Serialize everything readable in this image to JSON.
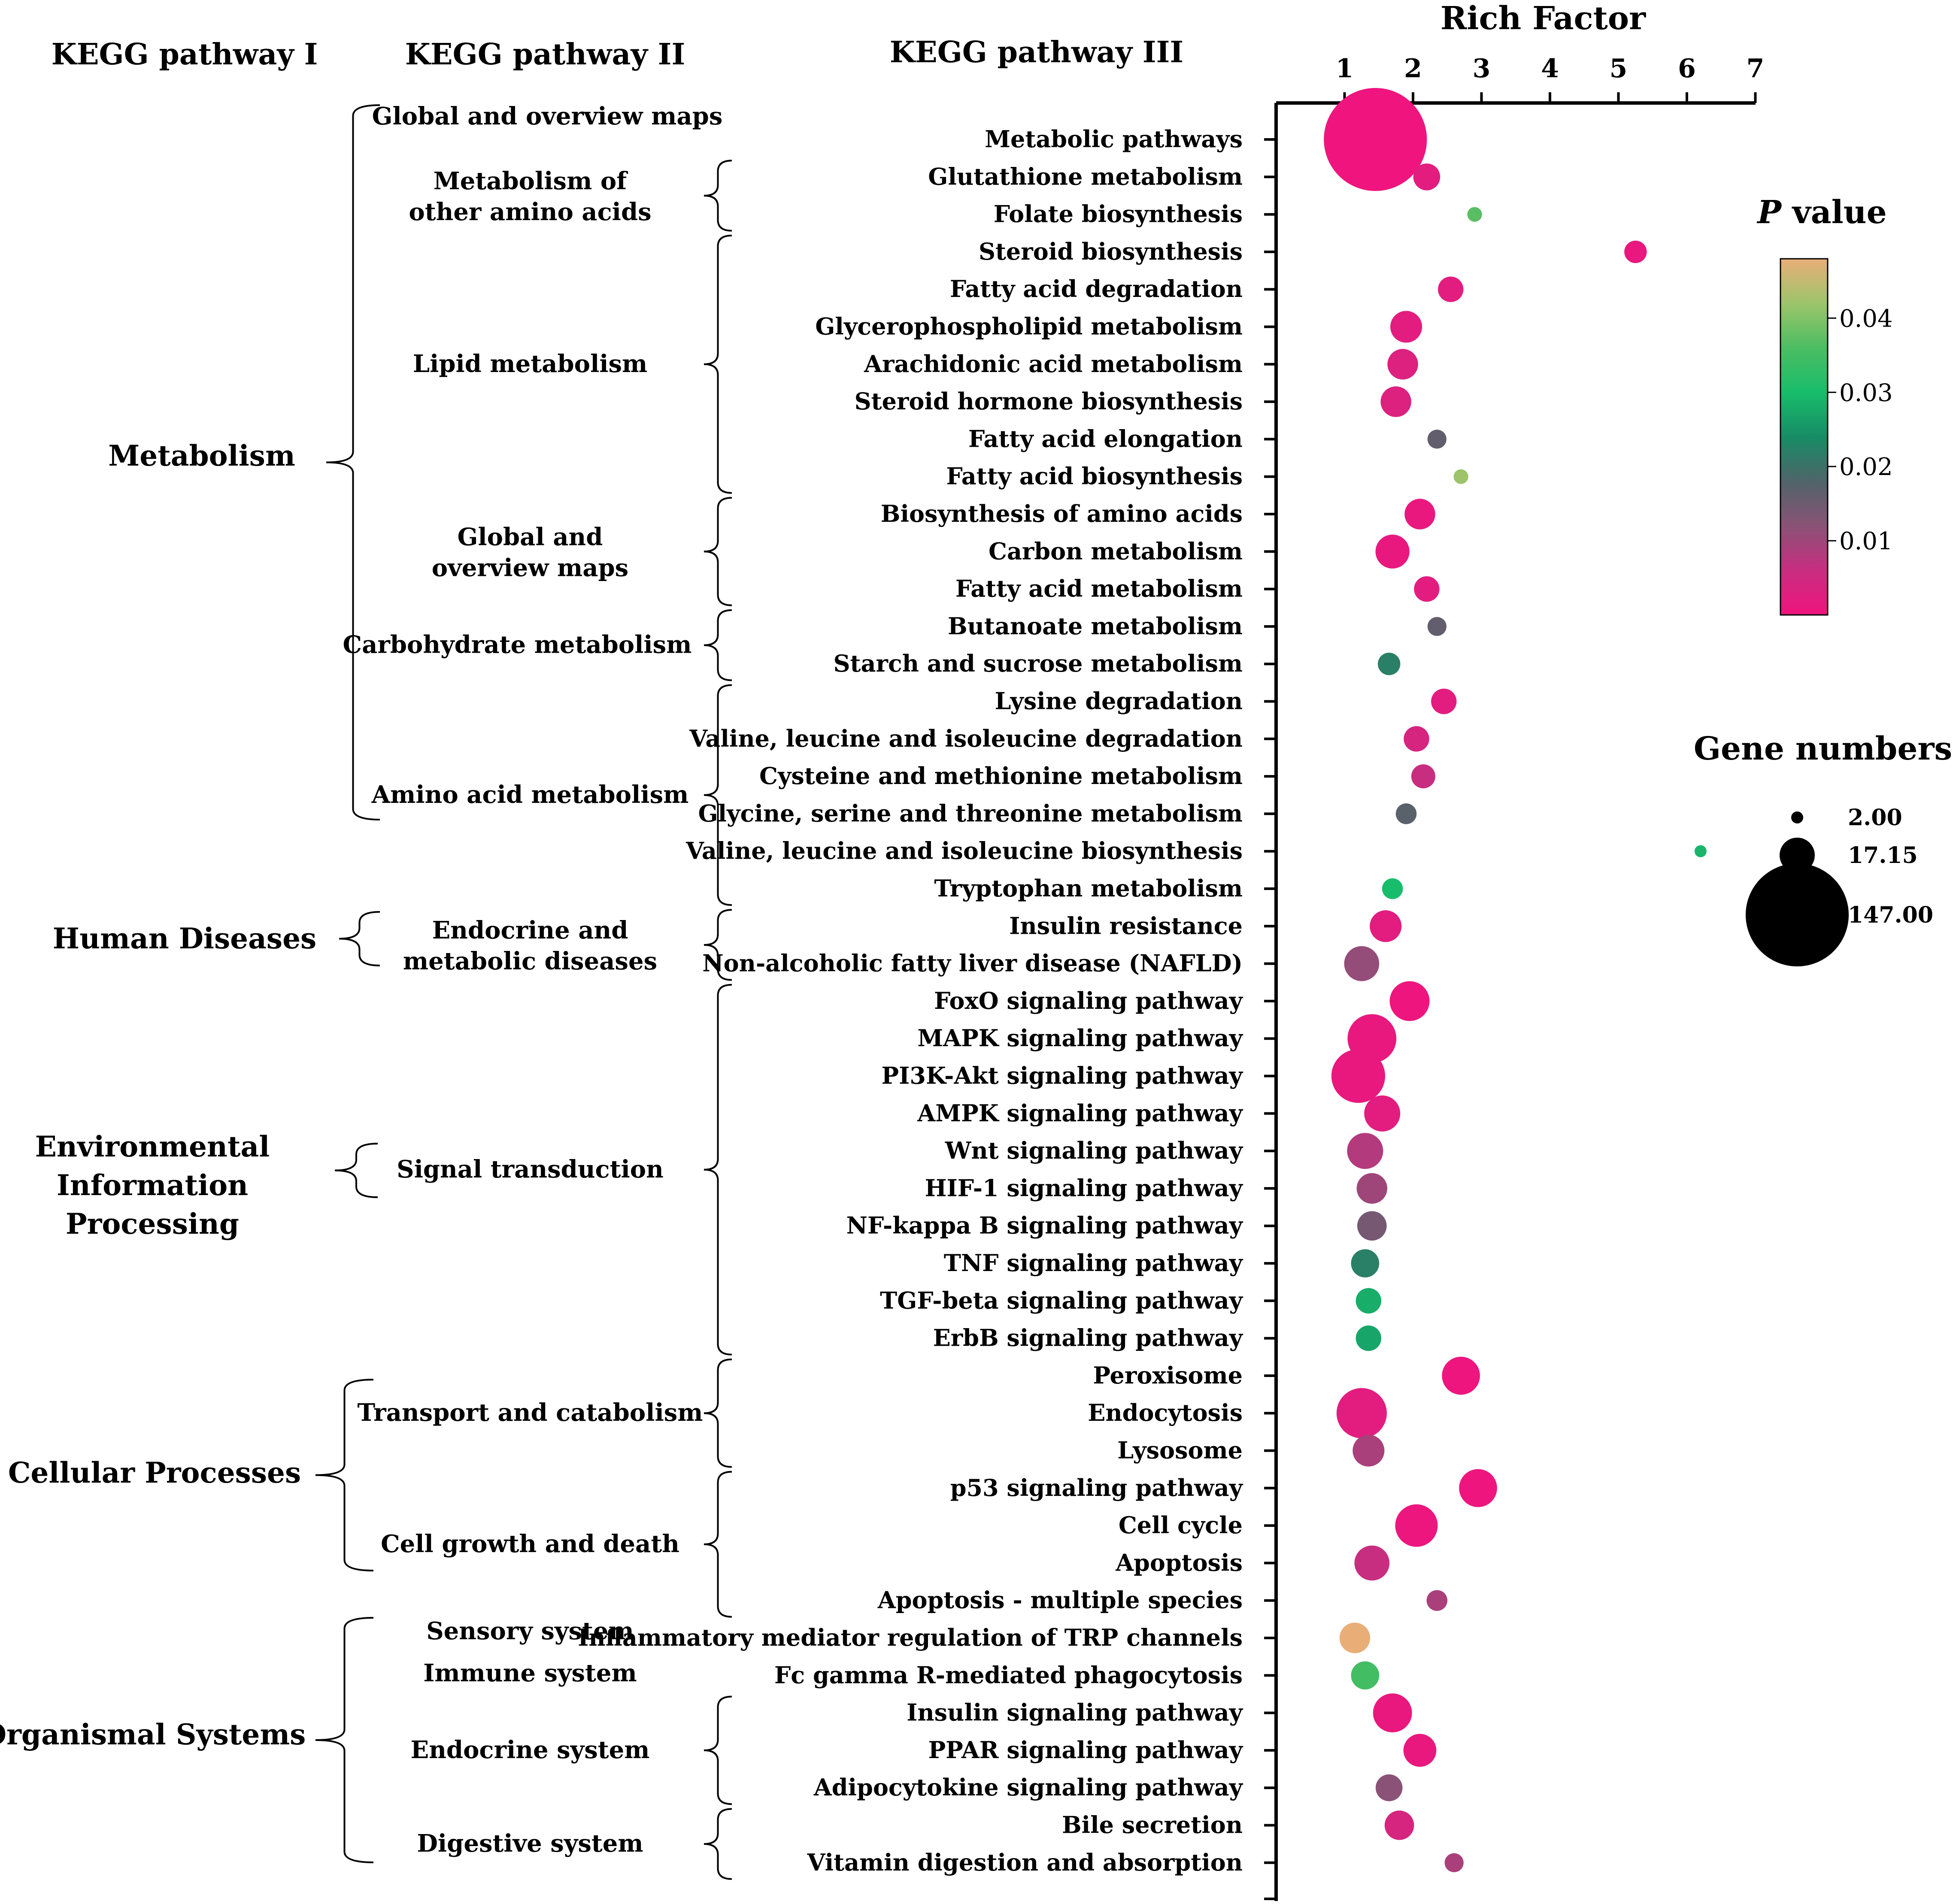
{
  "headers": {
    "level1": "KEGG pathway I",
    "level2": "KEGG pathway II",
    "level3": "KEGG pathway III"
  },
  "chart_data": {
    "type": "scatter",
    "title": "",
    "xlabel": "Rich Factor",
    "ylabel": "",
    "xlim": [
      0,
      7
    ],
    "xticks": [
      "1",
      "2",
      "3",
      "4",
      "5",
      "6",
      "7"
    ],
    "x_axis_position": "top",
    "color_scale": {
      "title_italic": "P",
      "title_rest": " value",
      "ticks": [
        "0.04",
        "0.03",
        "0.02",
        "0.01"
      ],
      "tick_values": [
        0.04,
        0.03,
        0.02,
        0.01
      ],
      "range": [
        0,
        0.048
      ],
      "colors": [
        "#f0147e",
        "#c72e80",
        "#8a5276",
        "#4f6469",
        "#178c66",
        "#18bd6b",
        "#4cbd62",
        "#9dc46a",
        "#e9ae78"
      ]
    },
    "size_legend": {
      "title": "Gene numbers",
      "entries": [
        {
          "label": "2.00",
          "value": 2
        },
        {
          "label": "17.15",
          "value": 17.15
        },
        {
          "label": "147.00",
          "value": 147
        }
      ]
    },
    "points": [
      {
        "label": "Metabolic pathways",
        "x": 1.45,
        "genes": 147,
        "p": 0.0001
      },
      {
        "label": "Glutathione metabolism",
        "x": 2.2,
        "genes": 10,
        "p": 0.002
      },
      {
        "label": "Folate biosynthesis",
        "x": 2.9,
        "genes": 3,
        "p": 0.037
      },
      {
        "label": "Steroid biosynthesis",
        "x": 5.25,
        "genes": 7,
        "p": 0.001
      },
      {
        "label": "Fatty acid degradation",
        "x": 2.55,
        "genes": 9,
        "p": 0.002
      },
      {
        "label": "Glycerophospholipid metabolism",
        "x": 1.9,
        "genes": 14,
        "p": 0.002
      },
      {
        "label": "Arachidonic acid metabolism",
        "x": 1.85,
        "genes": 13,
        "p": 0.003
      },
      {
        "label": "Steroid hormone biosynthesis",
        "x": 1.75,
        "genes": 13,
        "p": 0.003
      },
      {
        "label": "Fatty acid elongation",
        "x": 2.35,
        "genes": 5,
        "p": 0.016
      },
      {
        "label": "Fatty acid biosynthesis",
        "x": 2.7,
        "genes": 3,
        "p": 0.042
      },
      {
        "label": "Biosynthesis of amino acids",
        "x": 2.1,
        "genes": 13,
        "p": 0.001
      },
      {
        "label": "Carbon metabolism",
        "x": 1.7,
        "genes": 16,
        "p": 0.001
      },
      {
        "label": "Fatty acid metabolism",
        "x": 2.2,
        "genes": 9,
        "p": 0.002
      },
      {
        "label": "Butanoate metabolism",
        "x": 2.35,
        "genes": 5,
        "p": 0.016
      },
      {
        "label": "Starch and sucrose metabolism",
        "x": 1.65,
        "genes": 7,
        "p": 0.022
      },
      {
        "label": "Lysine degradation",
        "x": 2.45,
        "genes": 9,
        "p": 0.002
      },
      {
        "label": "Valine, leucine and isoleucine degradation",
        "x": 2.05,
        "genes": 9,
        "p": 0.004
      },
      {
        "label": "Cysteine and methionine metabolism",
        "x": 2.15,
        "genes": 8,
        "p": 0.006
      },
      {
        "label": "Glycine, serine and threonine metabolism",
        "x": 1.9,
        "genes": 6,
        "p": 0.017
      },
      {
        "label": "Valine, leucine and isoleucine biosynthesis",
        "x": 6.2,
        "genes": 2,
        "p": 0.029
      },
      {
        "label": "Tryptophan metabolism",
        "x": 1.7,
        "genes": 6,
        "p": 0.03
      },
      {
        "label": "Insulin resistance",
        "x": 1.6,
        "genes": 14,
        "p": 0.002
      },
      {
        "label": "Non-alcoholic fatty liver disease (NAFLD)",
        "x": 1.25,
        "genes": 17,
        "p": 0.011
      },
      {
        "label": "FoxO signaling pathway",
        "x": 1.95,
        "genes": 22,
        "p": 0.0003
      },
      {
        "label": "MAPK signaling pathway",
        "x": 1.4,
        "genes": 33,
        "p": 0.001
      },
      {
        "label": "PI3K-Akt signaling pathway",
        "x": 1.2,
        "genes": 40,
        "p": 0.001
      },
      {
        "label": "AMPK signaling pathway",
        "x": 1.55,
        "genes": 18,
        "p": 0.002
      },
      {
        "label": "Wnt signaling pathway",
        "x": 1.3,
        "genes": 18,
        "p": 0.008
      },
      {
        "label": "HIF-1 signaling pathway",
        "x": 1.4,
        "genes": 13,
        "p": 0.01
      },
      {
        "label": "NF-kappa B signaling pathway",
        "x": 1.4,
        "genes": 12,
        "p": 0.014
      },
      {
        "label": "TNF signaling pathway",
        "x": 1.3,
        "genes": 11,
        "p": 0.022
      },
      {
        "label": "TGF-beta signaling pathway",
        "x": 1.35,
        "genes": 9,
        "p": 0.028
      },
      {
        "label": "ErbB signaling pathway",
        "x": 1.35,
        "genes": 9,
        "p": 0.027
      },
      {
        "label": "Peroxisome",
        "x": 2.7,
        "genes": 20,
        "p": 0.0003
      },
      {
        "label": "Endocytosis",
        "x": 1.25,
        "genes": 35,
        "p": 0.002
      },
      {
        "label": "Lysosome",
        "x": 1.35,
        "genes": 14,
        "p": 0.009
      },
      {
        "label": "p53 signaling pathway",
        "x": 2.95,
        "genes": 20,
        "p": 0.0003
      },
      {
        "label": "Cell cycle",
        "x": 2.05,
        "genes": 25,
        "p": 0.0005
      },
      {
        "label": "Apoptosis",
        "x": 1.4,
        "genes": 17,
        "p": 0.006
      },
      {
        "label": "Apoptosis - multiple species",
        "x": 2.35,
        "genes": 6,
        "p": 0.009
      },
      {
        "label": "Inflammatory mediator regulation of TRP channels",
        "x": 1.15,
        "genes": 13,
        "p": 0.048
      },
      {
        "label": "Fc gamma R-mediated phagocytosis",
        "x": 1.3,
        "genes": 11,
        "p": 0.035
      },
      {
        "label": "Insulin signaling pathway",
        "x": 1.7,
        "genes": 21,
        "p": 0.001
      },
      {
        "label": "PPAR signaling pathway",
        "x": 2.1,
        "genes": 15,
        "p": 0.001
      },
      {
        "label": "Adipocytokine signaling pathway",
        "x": 1.65,
        "genes": 10,
        "p": 0.012
      },
      {
        "label": "Bile secretion",
        "x": 1.8,
        "genes": 12,
        "p": 0.004
      },
      {
        "label": "Vitamin digestion and absorption",
        "x": 2.6,
        "genes": 5,
        "p": 0.009
      }
    ]
  },
  "level2_groups": [
    {
      "label": "Global and overview maps",
      "start": 0,
      "end": 0
    },
    {
      "label": "Metabolism of other amino acids",
      "lines": [
        "Metabolism of",
        "other amino acids"
      ],
      "start": 1,
      "end": 2
    },
    {
      "label": "Lipid metabolism",
      "start": 3,
      "end": 9
    },
    {
      "label": "Global and overview maps",
      "lines": [
        "Global and",
        "overview maps"
      ],
      "start": 10,
      "end": 12
    },
    {
      "label": "Carbohydrate metabolism",
      "start": 13,
      "end": 14
    },
    {
      "label": "Amino acid metabolism",
      "start": 15,
      "end": 20
    },
    {
      "label": "Endocrine and metabolic diseases",
      "lines": [
        "Endocrine and",
        "metabolic diseases"
      ],
      "start": 21,
      "end": 22
    },
    {
      "label": "Signal transduction",
      "start": 23,
      "end": 32
    },
    {
      "label": "Transport and catabolism",
      "start": 33,
      "end": 35
    },
    {
      "label": "Cell growth and death",
      "start": 36,
      "end": 39
    },
    {
      "label": "Sensory system",
      "start": 40,
      "end": 40
    },
    {
      "label": "Immune system",
      "start": 41,
      "end": 41
    },
    {
      "label": "Endocrine system",
      "start": 42,
      "end": 44
    },
    {
      "label": "Digestive system",
      "start": 45,
      "end": 46
    }
  ],
  "level1_groups": [
    {
      "label": "Metabolism",
      "lines": [
        "Metabolism"
      ],
      "start": 0,
      "end": 20
    },
    {
      "label": "Human Diseases",
      "lines": [
        "Human Diseases"
      ],
      "start": 21,
      "end": 22
    },
    {
      "label": "Environmental Information Processing",
      "lines": [
        "Environmental",
        "Information",
        "Processing"
      ],
      "start": 23,
      "end": 32
    },
    {
      "label": "Cellular Processes",
      "lines": [
        "Cellular Processes"
      ],
      "start": 33,
      "end": 39
    },
    {
      "label": "Organismal Systems",
      "lines": [
        "Organismal Systems"
      ],
      "start": 40,
      "end": 46
    }
  ]
}
